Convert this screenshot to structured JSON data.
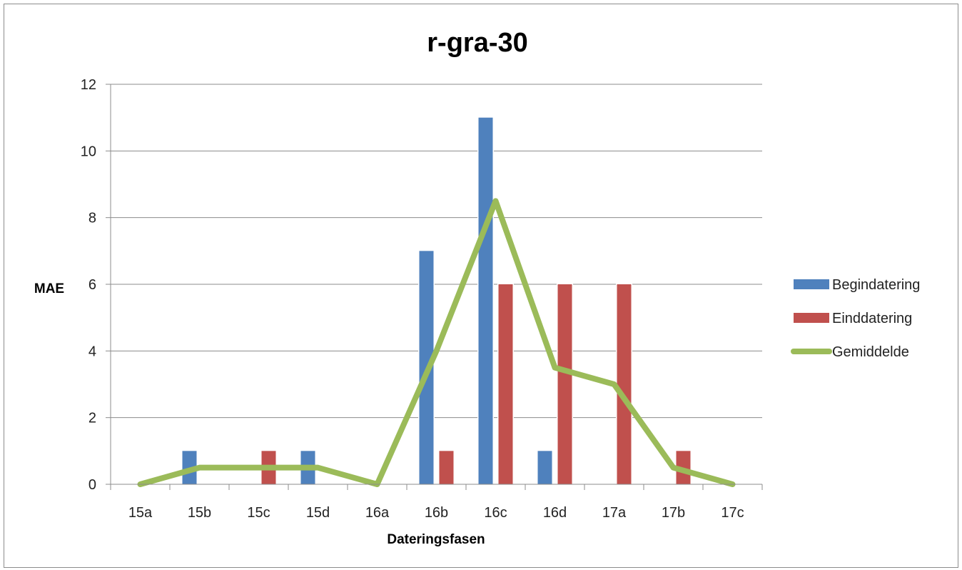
{
  "chart_data": {
    "type": "bar",
    "title": "r-gra-30",
    "xlabel": "Dateringsfasen",
    "ylabel": "MAE",
    "ylim": [
      0,
      12
    ],
    "yticks": [
      0,
      2,
      4,
      6,
      8,
      10,
      12
    ],
    "grid": true,
    "legend_position": "right",
    "categories": [
      "15a",
      "15b",
      "15c",
      "15d",
      "16a",
      "16b",
      "16c",
      "16d",
      "17a",
      "17b",
      "17c"
    ],
    "series": [
      {
        "name": "Begindatering",
        "type": "bar",
        "color": "#4F81BD",
        "values": [
          0,
          1,
          0,
          1,
          0,
          7,
          11,
          1,
          0,
          0,
          0
        ]
      },
      {
        "name": "Einddatering",
        "type": "bar",
        "color": "#C0504D",
        "values": [
          0,
          0,
          1,
          0,
          0,
          1,
          6,
          6,
          6,
          1,
          0
        ]
      },
      {
        "name": "Gemiddelde",
        "type": "line",
        "color": "#9BBB59",
        "values": [
          0,
          0.5,
          0.5,
          0.5,
          0,
          4,
          8.5,
          3.5,
          3,
          0.5,
          0
        ]
      }
    ]
  }
}
